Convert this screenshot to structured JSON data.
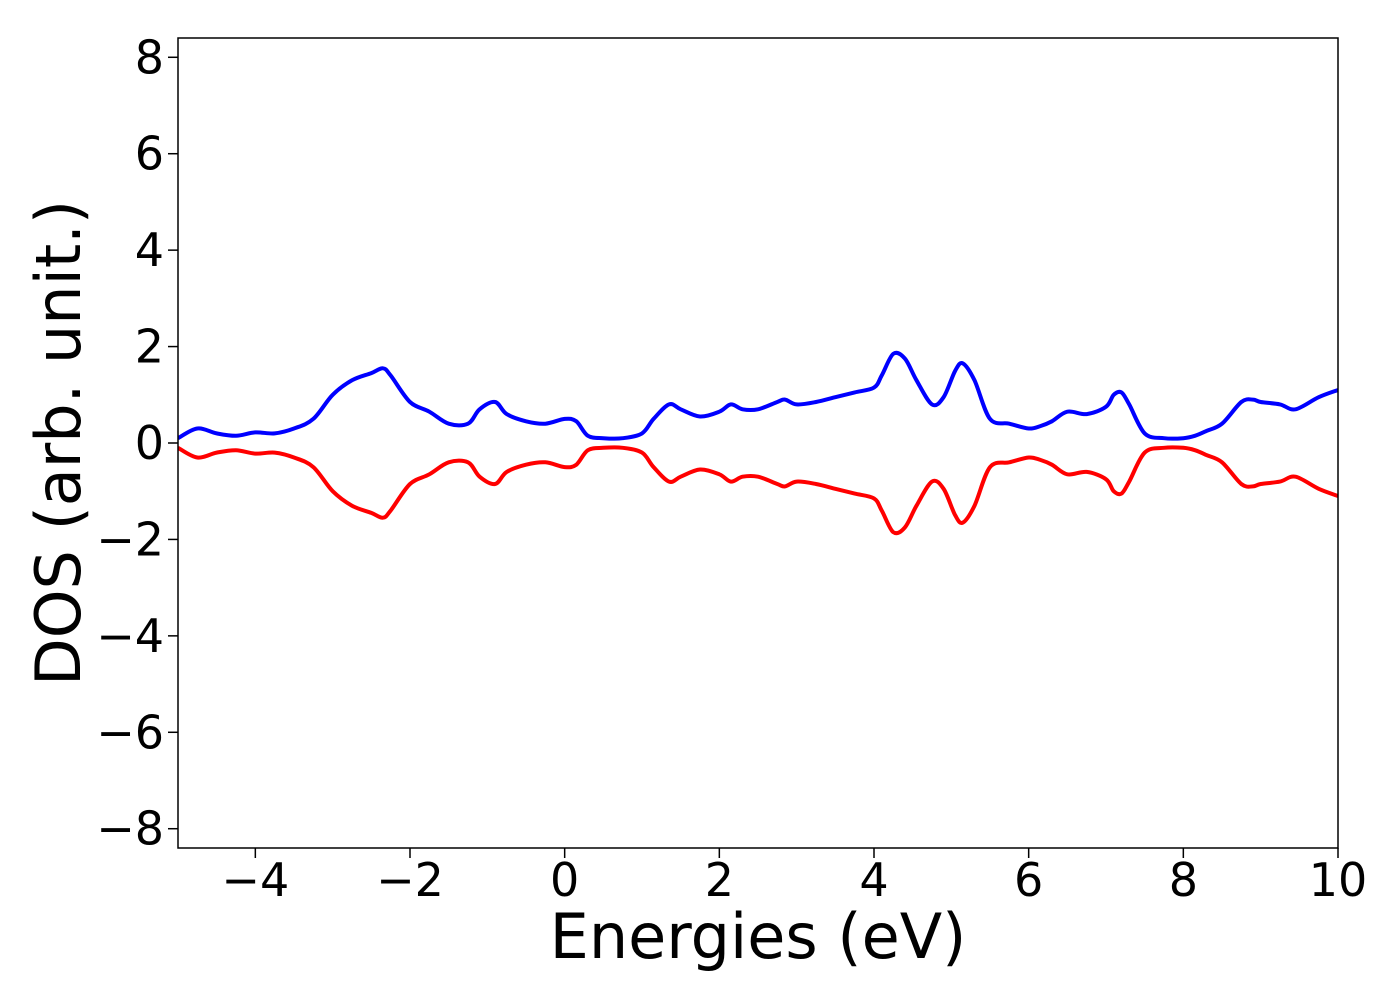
{
  "chart_data": {
    "type": "line",
    "title": "",
    "xlabel": "Energies (eV)",
    "ylabel": "DOS (arb. unit.)",
    "xlim": [
      -5,
      10
    ],
    "ylim": [
      -8.4,
      8.4
    ],
    "xticks": [
      -4,
      -2,
      0,
      2,
      4,
      6,
      8,
      10
    ],
    "yticks": [
      -8,
      -6,
      -4,
      -2,
      0,
      2,
      4,
      6,
      8
    ],
    "xtick_labels": [
      "−4",
      "−2",
      "0",
      "2",
      "4",
      "6",
      "8",
      "10"
    ],
    "ytick_labels": [
      "−8",
      "−6",
      "−4",
      "−2",
      "0",
      "2",
      "4",
      "6",
      "8"
    ],
    "grid": false,
    "x": [
      -5.0,
      -4.75,
      -4.5,
      -4.25,
      -4.0,
      -3.75,
      -3.5,
      -3.25,
      -3.0,
      -2.75,
      -2.5,
      -2.35,
      -2.25,
      -2.0,
      -1.75,
      -1.5,
      -1.25,
      -1.1,
      -0.9,
      -0.75,
      -0.5,
      -0.25,
      0.0,
      0.15,
      0.3,
      0.5,
      0.75,
      1.0,
      1.15,
      1.35,
      1.5,
      1.75,
      2.0,
      2.15,
      2.3,
      2.5,
      2.75,
      2.85,
      3.0,
      3.25,
      3.5,
      3.75,
      4.0,
      4.1,
      4.25,
      4.4,
      4.55,
      4.75,
      4.9,
      5.05,
      5.15,
      5.3,
      5.5,
      5.75,
      6.0,
      6.15,
      6.3,
      6.5,
      6.75,
      7.0,
      7.1,
      7.2,
      7.3,
      7.5,
      7.75,
      8.0,
      8.15,
      8.3,
      8.5,
      8.75,
      8.9,
      9.0,
      9.25,
      9.45,
      9.75,
      10.0
    ],
    "series": [
      {
        "color": "#0000ff",
        "y": [
          0.1,
          0.3,
          0.2,
          0.15,
          0.22,
          0.2,
          0.3,
          0.5,
          1.0,
          1.3,
          1.45,
          1.55,
          1.4,
          0.85,
          0.65,
          0.4,
          0.4,
          0.7,
          0.85,
          0.6,
          0.45,
          0.4,
          0.5,
          0.45,
          0.15,
          0.1,
          0.1,
          0.2,
          0.5,
          0.8,
          0.7,
          0.55,
          0.65,
          0.8,
          0.7,
          0.7,
          0.85,
          0.9,
          0.8,
          0.85,
          0.95,
          1.05,
          1.15,
          1.4,
          1.85,
          1.75,
          1.3,
          0.8,
          0.95,
          1.5,
          1.65,
          1.3,
          0.5,
          0.4,
          0.3,
          0.35,
          0.45,
          0.65,
          0.6,
          0.75,
          1.0,
          1.05,
          0.8,
          0.2,
          0.1,
          0.1,
          0.15,
          0.25,
          0.4,
          0.85,
          0.9,
          0.85,
          0.8,
          0.7,
          0.95,
          1.1
        ]
      },
      {
        "color": "#ff0000",
        "y": [
          -0.1,
          -0.3,
          -0.2,
          -0.15,
          -0.22,
          -0.2,
          -0.3,
          -0.5,
          -1.0,
          -1.3,
          -1.45,
          -1.55,
          -1.4,
          -0.85,
          -0.65,
          -0.4,
          -0.4,
          -0.7,
          -0.85,
          -0.6,
          -0.45,
          -0.4,
          -0.5,
          -0.45,
          -0.15,
          -0.1,
          -0.1,
          -0.2,
          -0.5,
          -0.8,
          -0.7,
          -0.55,
          -0.65,
          -0.8,
          -0.7,
          -0.7,
          -0.85,
          -0.9,
          -0.8,
          -0.85,
          -0.95,
          -1.05,
          -1.15,
          -1.4,
          -1.85,
          -1.75,
          -1.3,
          -0.8,
          -0.95,
          -1.5,
          -1.65,
          -1.3,
          -0.5,
          -0.4,
          -0.3,
          -0.35,
          -0.45,
          -0.65,
          -0.6,
          -0.75,
          -1.0,
          -1.05,
          -0.8,
          -0.2,
          -0.1,
          -0.1,
          -0.15,
          -0.25,
          -0.4,
          -0.85,
          -0.9,
          -0.85,
          -0.8,
          -0.7,
          -0.95,
          -1.1
        ]
      }
    ]
  }
}
